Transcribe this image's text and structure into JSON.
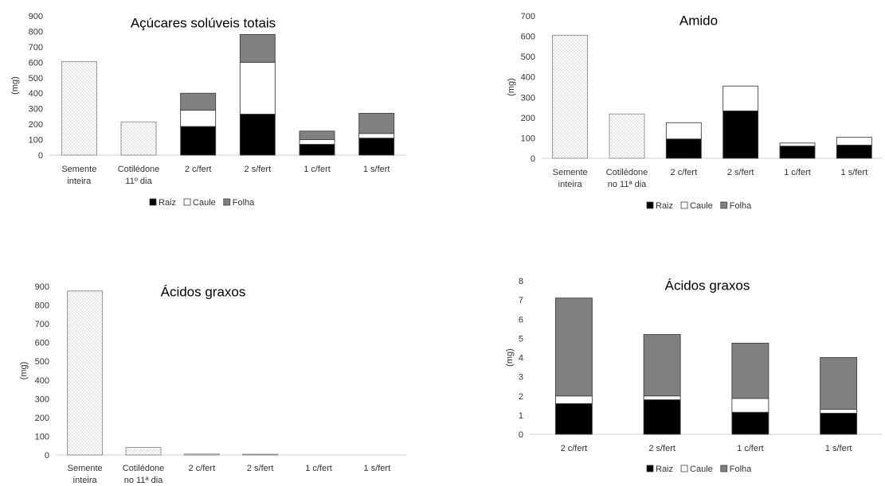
{
  "chart_data": [
    {
      "type": "bar",
      "stacked": true,
      "title": "Açúcares solúveis totais",
      "ylabel": "(mg)",
      "ylim": [
        0,
        900
      ],
      "yticks": [
        0,
        100,
        200,
        300,
        400,
        500,
        600,
        700,
        800,
        900
      ],
      "categories": [
        [
          "Semente",
          "inteira"
        ],
        [
          "Cotilédone",
          "11º dia"
        ],
        [
          "2 c/fert"
        ],
        [
          "2 s/fert"
        ],
        [
          "1 c/fert"
        ],
        [
          "1 s/fert"
        ]
      ],
      "whole_seed_series": {
        "values": [
          605,
          215,
          null,
          null,
          null,
          null
        ]
      },
      "series": [
        {
          "name": "Raiz",
          "color": "#000000",
          "values": [
            null,
            null,
            185,
            265,
            70,
            110
          ]
        },
        {
          "name": "Caule",
          "color": "#ffffff",
          "values": [
            null,
            null,
            105,
            335,
            30,
            30
          ]
        },
        {
          "name": "Folha",
          "color": "#808080",
          "values": [
            null,
            null,
            110,
            180,
            55,
            130
          ]
        }
      ],
      "legend": "bottom"
    },
    {
      "type": "bar",
      "stacked": true,
      "title": "Amido",
      "ylabel": "(mg)",
      "ylim": [
        0,
        700
      ],
      "yticks": [
        0,
        100,
        200,
        300,
        400,
        500,
        600,
        700
      ],
      "categories": [
        [
          "Semente",
          "inteira"
        ],
        [
          "Cotilédone",
          "no 11ª dia"
        ],
        [
          "2 c/fert"
        ],
        [
          "2 s/fert"
        ],
        [
          "1 c/fert"
        ],
        [
          "1 s/fert"
        ]
      ],
      "whole_seed_series": {
        "values": [
          605,
          218,
          null,
          null,
          null,
          null
        ]
      },
      "series": [
        {
          "name": "Raiz",
          "color": "#000000",
          "values": [
            null,
            null,
            95,
            233,
            60,
            65
          ]
        },
        {
          "name": "Caule",
          "color": "#ffffff",
          "values": [
            null,
            null,
            80,
            122,
            15,
            38
          ]
        },
        {
          "name": "Folha",
          "color": "#808080",
          "values": [
            null,
            null,
            0,
            0,
            0,
            0
          ]
        }
      ],
      "legend": "bottom"
    },
    {
      "type": "bar",
      "stacked": true,
      "title": "Ácidos graxos",
      "ylabel": "(mg)",
      "ylim": [
        0,
        900
      ],
      "yticks": [
        0,
        100,
        200,
        300,
        400,
        500,
        600,
        700,
        800,
        900
      ],
      "categories": [
        [
          "Semente",
          "inteira"
        ],
        [
          "Cotilédone",
          "no 11ª dia"
        ],
        [
          "2 c/fert"
        ],
        [
          "2 s/fert"
        ],
        [
          "1 c/fert"
        ],
        [
          "1 s/fert"
        ]
      ],
      "whole_seed_series": {
        "values": [
          875,
          40,
          5,
          4,
          null,
          null
        ]
      },
      "series": [],
      "legend": "none"
    },
    {
      "type": "bar",
      "stacked": true,
      "title": "Ácidos graxos",
      "ylabel": "(mg)",
      "ylim": [
        0,
        8
      ],
      "yticks": [
        0,
        1,
        2,
        3,
        4,
        5,
        6,
        7,
        8
      ],
      "categories": [
        [
          "2 c/fert"
        ],
        [
          "2 s/fert"
        ],
        [
          "1 c/fert"
        ],
        [
          "1 s/fert"
        ]
      ],
      "whole_seed_series": {
        "values": [
          null,
          null,
          null,
          null
        ]
      },
      "series": [
        {
          "name": "Raiz",
          "color": "#000000",
          "values": [
            1.6,
            1.8,
            1.15,
            1.1
          ]
        },
        {
          "name": "Caule",
          "color": "#ffffff",
          "values": [
            0.4,
            0.2,
            0.72,
            0.2
          ]
        },
        {
          "name": "Folha",
          "color": "#808080",
          "values": [
            5.1,
            3.2,
            2.88,
            2.7
          ]
        }
      ],
      "legend": "bottom"
    }
  ]
}
